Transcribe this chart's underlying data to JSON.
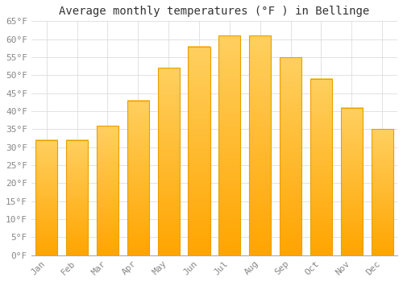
{
  "title": "Average monthly temperatures (°F ) in Bellinge",
  "months": [
    "Jan",
    "Feb",
    "Mar",
    "Apr",
    "May",
    "Jun",
    "Jul",
    "Aug",
    "Sep",
    "Oct",
    "Nov",
    "Dec"
  ],
  "values": [
    32,
    32,
    36,
    43,
    52,
    58,
    61,
    61,
    55,
    49,
    41,
    35
  ],
  "bar_color_top": "#FFD060",
  "bar_color_bottom": "#FFA500",
  "bar_edge_color": "#E8A000",
  "ylim": [
    0,
    65
  ],
  "yticks": [
    0,
    5,
    10,
    15,
    20,
    25,
    30,
    35,
    40,
    45,
    50,
    55,
    60,
    65
  ],
  "ytick_labels": [
    "0°F",
    "5°F",
    "10°F",
    "15°F",
    "20°F",
    "25°F",
    "30°F",
    "35°F",
    "40°F",
    "45°F",
    "50°F",
    "55°F",
    "60°F",
    "65°F"
  ],
  "background_color": "#FFFFFF",
  "grid_color": "#DDDDDD",
  "title_fontsize": 10,
  "tick_fontsize": 8,
  "font_family": "monospace",
  "tick_color": "#888888",
  "title_color": "#333333"
}
